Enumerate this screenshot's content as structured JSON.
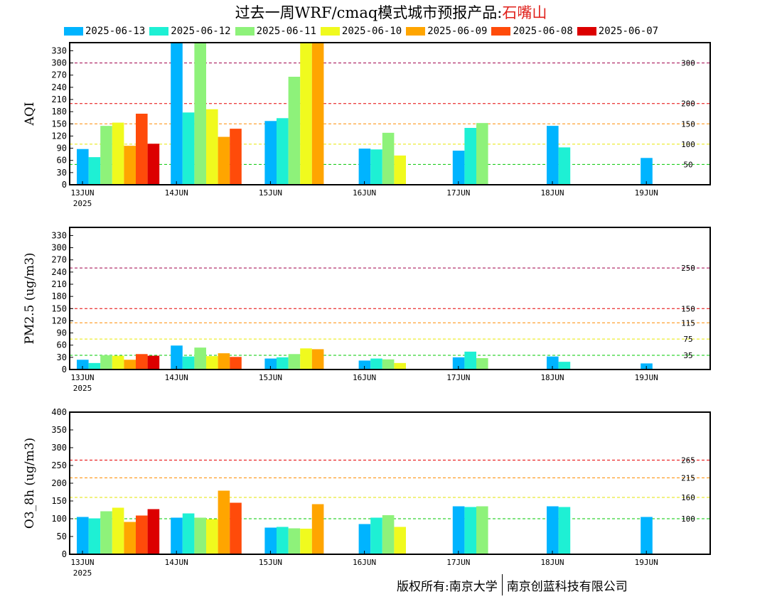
{
  "title_prefix": "过去一周WRF/cmaq模式城市预报产品:",
  "title_city": "石嘴山",
  "copyright": {
    "left": "版权所有:南京大学",
    "right": "南京创蓝科技有限公司"
  },
  "chart_data": {
    "type": "bar",
    "x": [
      "13JUN",
      "14JUN",
      "15JUN",
      "16JUN",
      "17JUN",
      "18JUN",
      "19JUN"
    ],
    "x_year": "2025",
    "series_names": [
      "2025-06-13",
      "2025-06-12",
      "2025-06-11",
      "2025-06-10",
      "2025-06-09",
      "2025-06-08",
      "2025-06-07"
    ],
    "series_colors": [
      "#00b4ff",
      "#1ef0d4",
      "#8ef27a",
      "#f0fa1e",
      "#ffa500",
      "#ff4b0a",
      "#dc0000"
    ],
    "legend_position": "top",
    "panels": [
      {
        "ylabel": "AQI",
        "ylim": [
          0,
          350
        ],
        "yticks": [
          0,
          30,
          60,
          90,
          120,
          150,
          180,
          210,
          240,
          270,
          300,
          330
        ],
        "thresholds": [
          {
            "value": 50,
            "label": "50",
            "color": "#00c800"
          },
          {
            "value": 100,
            "label": "100",
            "color": "#e6e600"
          },
          {
            "value": 150,
            "label": "150",
            "color": "#ff8c00"
          },
          {
            "value": 200,
            "label": "200",
            "color": "#e60000"
          },
          {
            "value": 300,
            "label": "300",
            "color": "#a0004b"
          }
        ],
        "values": [
          [
            88,
            68,
            145,
            153,
            96,
            175,
            101
          ],
          [
            350,
            178,
            350,
            186,
            118,
            138,
            null
          ],
          [
            157,
            164,
            266,
            350,
            350,
            null,
            null
          ],
          [
            89,
            87,
            128,
            72,
            null,
            null,
            null
          ],
          [
            84,
            140,
            152,
            null,
            null,
            null,
            null
          ],
          [
            145,
            92,
            null,
            null,
            null,
            null,
            null
          ],
          [
            66,
            null,
            null,
            null,
            null,
            null,
            null
          ]
        ]
      },
      {
        "ylabel": "PM2.5 (ug/m3)",
        "ylim": [
          0,
          350
        ],
        "yticks": [
          0,
          30,
          60,
          90,
          120,
          150,
          180,
          210,
          240,
          270,
          300,
          330
        ],
        "thresholds": [
          {
            "value": 35,
            "label": "35",
            "color": "#00c800"
          },
          {
            "value": 75,
            "label": "75",
            "color": "#e6e600"
          },
          {
            "value": 115,
            "label": "115",
            "color": "#ff8c00"
          },
          {
            "value": 150,
            "label": "150",
            "color": "#e60000"
          },
          {
            "value": 250,
            "label": "250",
            "color": "#a0004b"
          }
        ],
        "values": [
          [
            24,
            16,
            35,
            34,
            24,
            38,
            34
          ],
          [
            59,
            32,
            54,
            33,
            40,
            31,
            null
          ],
          [
            27,
            30,
            38,
            52,
            50,
            null,
            null
          ],
          [
            22,
            27,
            25,
            16,
            null,
            null,
            null
          ],
          [
            30,
            44,
            28,
            null,
            null,
            null,
            null
          ],
          [
            32,
            19,
            null,
            null,
            null,
            null,
            null
          ],
          [
            15,
            null,
            null,
            null,
            null,
            null,
            null
          ]
        ]
      },
      {
        "ylabel": "O3_8h (ug/m3)",
        "ylim": [
          0,
          400
        ],
        "yticks": [
          0,
          50,
          100,
          150,
          200,
          250,
          300,
          350,
          400
        ],
        "thresholds": [
          {
            "value": 100,
            "label": "100",
            "color": "#00c800"
          },
          {
            "value": 160,
            "label": "160",
            "color": "#e6e600"
          },
          {
            "value": 215,
            "label": "215",
            "color": "#ff8c00"
          },
          {
            "value": 265,
            "label": "265",
            "color": "#e60000"
          }
        ],
        "values": [
          [
            105,
            101,
            121,
            131,
            91,
            109,
            127
          ],
          [
            103,
            115,
            103,
            99,
            179,
            145,
            null
          ],
          [
            75,
            77,
            73,
            72,
            141,
            null,
            null
          ],
          [
            85,
            103,
            110,
            77,
            null,
            null,
            null
          ],
          [
            135,
            133,
            135,
            null,
            null,
            null,
            null
          ],
          [
            135,
            133,
            null,
            null,
            null,
            null,
            null
          ],
          [
            105,
            null,
            null,
            null,
            null,
            null,
            null
          ]
        ]
      }
    ]
  }
}
